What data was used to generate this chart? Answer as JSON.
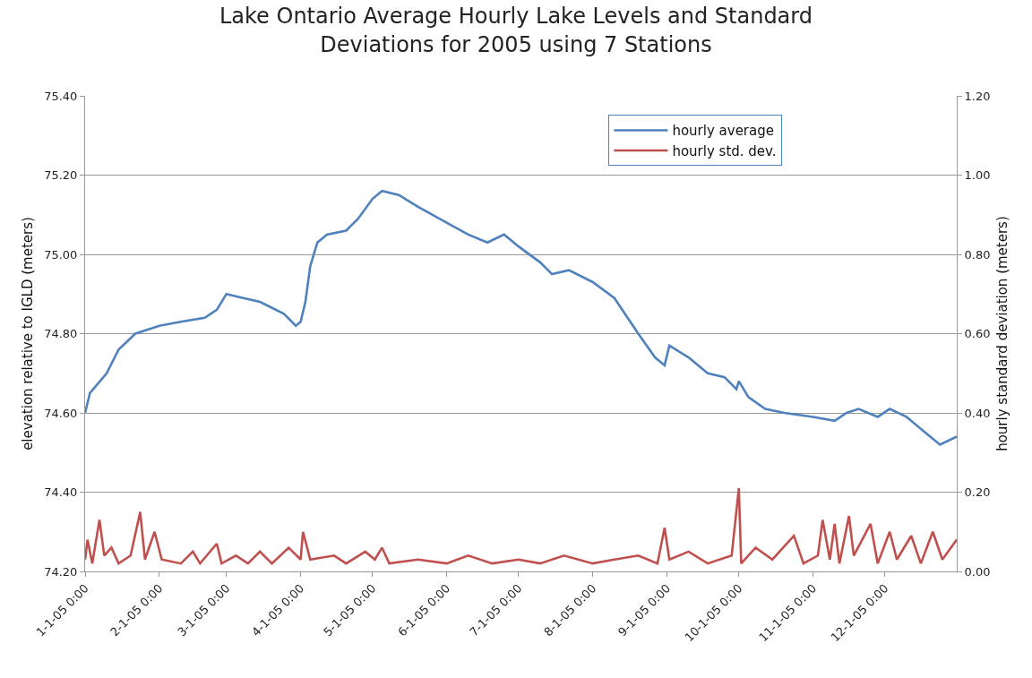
{
  "chart_data": {
    "type": "line",
    "title": "Lake Ontario Average Hourly Lake Levels and Standard\nDeviations for 2005 using 7 Stations",
    "ylabel": "elevation relative to IGLD (meters)",
    "y2label": "hourly standard deviation (meters)",
    "xlim": [
      "2005-01-01",
      "2005-12-31"
    ],
    "xticks": [
      {
        "value": "2005-01-01",
        "label": "1-1-05 0:00"
      },
      {
        "value": "2005-02-01",
        "label": "2-1-05 0:00"
      },
      {
        "value": "2005-03-01",
        "label": "3-1-05 0:00"
      },
      {
        "value": "2005-04-01",
        "label": "4-1-05 0:00"
      },
      {
        "value": "2005-05-01",
        "label": "5-1-05 0:00"
      },
      {
        "value": "2005-06-01",
        "label": "6-1-05 0:00"
      },
      {
        "value": "2005-07-01",
        "label": "7-1-05 0:00"
      },
      {
        "value": "2005-08-01",
        "label": "8-1-05 0:00"
      },
      {
        "value": "2005-09-01",
        "label": "9-1-05 0:00"
      },
      {
        "value": "2005-10-01",
        "label": "10-1-05 0:00"
      },
      {
        "value": "2005-11-01",
        "label": "11-1-05 0:00"
      },
      {
        "value": "2005-12-01",
        "label": "12-1-05 0:00"
      }
    ],
    "ylim": [
      74.2,
      75.4
    ],
    "yticks": [
      {
        "value": 74.2,
        "label": "74.20"
      },
      {
        "value": 74.4,
        "label": "74.40"
      },
      {
        "value": 74.6,
        "label": "74.60"
      },
      {
        "value": 74.8,
        "label": "74.80"
      },
      {
        "value": 75.0,
        "label": "75.00"
      },
      {
        "value": 75.2,
        "label": "75.20"
      },
      {
        "value": 75.4,
        "label": "75.40"
      }
    ],
    "y2lim": [
      0,
      1.2
    ],
    "y2ticks": [
      {
        "value": 0,
        "label": "0.00"
      },
      {
        "value": 0.2,
        "label": "0.20"
      },
      {
        "value": 0.4,
        "label": "0.40"
      },
      {
        "value": 0.6,
        "label": "0.60"
      },
      {
        "value": 0.8,
        "label": "0.80"
      },
      {
        "value": 1.0,
        "label": "1.00"
      },
      {
        "value": 1.2,
        "label": "1.20"
      }
    ],
    "grid": "y",
    "legend": "top right",
    "marker": "none",
    "line_style": "solid",
    "series": [
      {
        "name": "hourly average",
        "color": "#4f81bd",
        "x": [
          "2005-01-01",
          "2005-01-03",
          "2005-01-10",
          "2005-01-15",
          "2005-01-22",
          "2005-02-01",
          "2005-02-10",
          "2005-02-20",
          "2005-02-25",
          "2005-03-01",
          "2005-03-08",
          "2005-03-15",
          "2005-03-25",
          "2005-03-30",
          "2005-04-01",
          "2005-04-03",
          "2005-04-05",
          "2005-04-08",
          "2005-04-12",
          "2005-04-20",
          "2005-04-25",
          "2005-05-01",
          "2005-05-05",
          "2005-05-12",
          "2005-05-20",
          "2005-06-01",
          "2005-06-10",
          "2005-06-18",
          "2005-06-25",
          "2005-07-01",
          "2005-07-10",
          "2005-07-15",
          "2005-07-22",
          "2005-08-01",
          "2005-08-10",
          "2005-08-20",
          "2005-08-27",
          "2005-08-31",
          "2005-09-02",
          "2005-09-10",
          "2005-09-18",
          "2005-09-25",
          "2005-09-30",
          "2005-10-01",
          "2005-10-05",
          "2005-10-12",
          "2005-10-20",
          "2005-11-01",
          "2005-11-10",
          "2005-11-15",
          "2005-11-20",
          "2005-11-28",
          "2005-12-03",
          "2005-12-10",
          "2005-12-18",
          "2005-12-24",
          "2005-12-31"
        ],
        "values": [
          74.6,
          74.65,
          74.7,
          74.76,
          74.8,
          74.82,
          74.83,
          74.84,
          74.86,
          74.9,
          74.89,
          74.88,
          74.85,
          74.82,
          74.83,
          74.88,
          74.97,
          75.03,
          75.05,
          75.06,
          75.09,
          75.14,
          75.16,
          75.15,
          75.12,
          75.08,
          75.05,
          75.03,
          75.05,
          75.02,
          74.98,
          74.95,
          74.96,
          74.93,
          74.89,
          74.8,
          74.74,
          74.72,
          74.77,
          74.74,
          74.7,
          74.69,
          74.66,
          74.68,
          74.64,
          74.61,
          74.6,
          74.59,
          74.58,
          74.6,
          74.61,
          74.59,
          74.61,
          74.59,
          74.55,
          74.52,
          74.54
        ]
      },
      {
        "name": "hourly std. dev.",
        "color": "#c0504d",
        "axis": "y2",
        "x": [
          "2005-01-01",
          "2005-01-02",
          "2005-01-04",
          "2005-01-07",
          "2005-01-09",
          "2005-01-12",
          "2005-01-15",
          "2005-01-20",
          "2005-01-24",
          "2005-01-26",
          "2005-01-30",
          "2005-02-02",
          "2005-02-10",
          "2005-02-15",
          "2005-02-18",
          "2005-02-25",
          "2005-02-27",
          "2005-03-05",
          "2005-03-10",
          "2005-03-15",
          "2005-03-20",
          "2005-03-27",
          "2005-04-01",
          "2005-04-02",
          "2005-04-05",
          "2005-04-15",
          "2005-04-20",
          "2005-04-28",
          "2005-05-02",
          "2005-05-05",
          "2005-05-08",
          "2005-05-20",
          "2005-06-01",
          "2005-06-10",
          "2005-06-20",
          "2005-07-01",
          "2005-07-10",
          "2005-07-20",
          "2005-08-01",
          "2005-08-10",
          "2005-08-20",
          "2005-08-28",
          "2005-08-31",
          "2005-09-02",
          "2005-09-10",
          "2005-09-18",
          "2005-09-28",
          "2005-10-01",
          "2005-10-02",
          "2005-10-08",
          "2005-10-15",
          "2005-10-24",
          "2005-10-28",
          "2005-11-03",
          "2005-11-05",
          "2005-11-08",
          "2005-11-10",
          "2005-11-12",
          "2005-11-16",
          "2005-11-18",
          "2005-11-25",
          "2005-11-28",
          "2005-12-03",
          "2005-12-06",
          "2005-12-12",
          "2005-12-16",
          "2005-12-21",
          "2005-12-25",
          "2005-12-31"
        ],
        "values": [
          0.03,
          0.08,
          0.02,
          0.13,
          0.04,
          0.06,
          0.02,
          0.04,
          0.15,
          0.03,
          0.1,
          0.03,
          0.02,
          0.05,
          0.02,
          0.07,
          0.02,
          0.04,
          0.02,
          0.05,
          0.02,
          0.06,
          0.03,
          0.1,
          0.03,
          0.04,
          0.02,
          0.05,
          0.03,
          0.06,
          0.02,
          0.03,
          0.02,
          0.04,
          0.02,
          0.03,
          0.02,
          0.04,
          0.02,
          0.03,
          0.04,
          0.02,
          0.11,
          0.03,
          0.05,
          0.02,
          0.04,
          0.21,
          0.02,
          0.06,
          0.03,
          0.09,
          0.02,
          0.04,
          0.13,
          0.03,
          0.12,
          0.02,
          0.14,
          0.04,
          0.12,
          0.02,
          0.1,
          0.03,
          0.09,
          0.02,
          0.1,
          0.03,
          0.08
        ]
      }
    ]
  }
}
